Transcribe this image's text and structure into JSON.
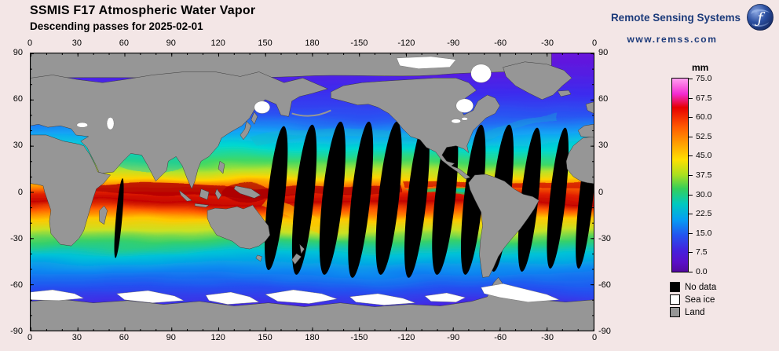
{
  "header": {
    "title": "SSMIS F17 Atmospheric Water Vapor",
    "subtitle": "Descending passes for 2025-02-01"
  },
  "branding": {
    "name": "Remote Sensing Systems",
    "url": "www.remss.com",
    "logo_glyph": "ƒ"
  },
  "colorbar": {
    "title": "mm",
    "labels": [
      "75.0",
      "67.5",
      "60.0",
      "52.5",
      "45.0",
      "37.5",
      "30.0",
      "22.5",
      "15.0",
      "7.5",
      "0.0"
    ]
  },
  "legend": {
    "items": [
      {
        "label": "No data",
        "color": "#000000"
      },
      {
        "label": "Sea ice",
        "color": "#ffffff"
      },
      {
        "label": "Land",
        "color": "#969696"
      }
    ]
  },
  "axes": {
    "lon": [
      "0",
      "30",
      "60",
      "90",
      "120",
      "150",
      "180",
      "-150",
      "-120",
      "-90",
      "-60",
      "-30",
      "0"
    ],
    "lat": [
      "90",
      "60",
      "30",
      "0",
      "-30",
      "-60",
      "-90"
    ]
  },
  "colors": {
    "bg": "#f3e6e6",
    "navy": "#1b3a7a",
    "land": "#969696",
    "nodata": "#000000",
    "seaice": "#ffffff"
  },
  "chart_data": {
    "type": "heatmap",
    "title": "SSMIS F17 Atmospheric Water Vapor",
    "subtitle": "Descending passes for 2025-02-01",
    "units": "mm",
    "scale_range": [
      0,
      75
    ],
    "scale_ticks": [
      75.0,
      67.5,
      60.0,
      52.5,
      45.0,
      37.5,
      30.0,
      22.5,
      15.0,
      7.5,
      0.0
    ],
    "x_axis": {
      "label": "longitude",
      "ticks": [
        0,
        30,
        60,
        90,
        120,
        150,
        180,
        -150,
        -120,
        -90,
        -60,
        -30,
        0
      ]
    },
    "y_axis": {
      "label": "latitude",
      "ticks": [
        90,
        60,
        30,
        0,
        -30,
        -60,
        -90
      ]
    },
    "legend": [
      "No data",
      "Sea ice",
      "Land"
    ],
    "notes": "Global water-vapor field: high values (40-60+ mm, red) along the equatorial band, mid values (yellow-green) in subtropics, low values (blue-purple, <15 mm) at high latitudes; black lens-shaped swath gaps between descending orbit passes across the Pacific and Atlantic; gray land, white sea ice near poles."
  }
}
